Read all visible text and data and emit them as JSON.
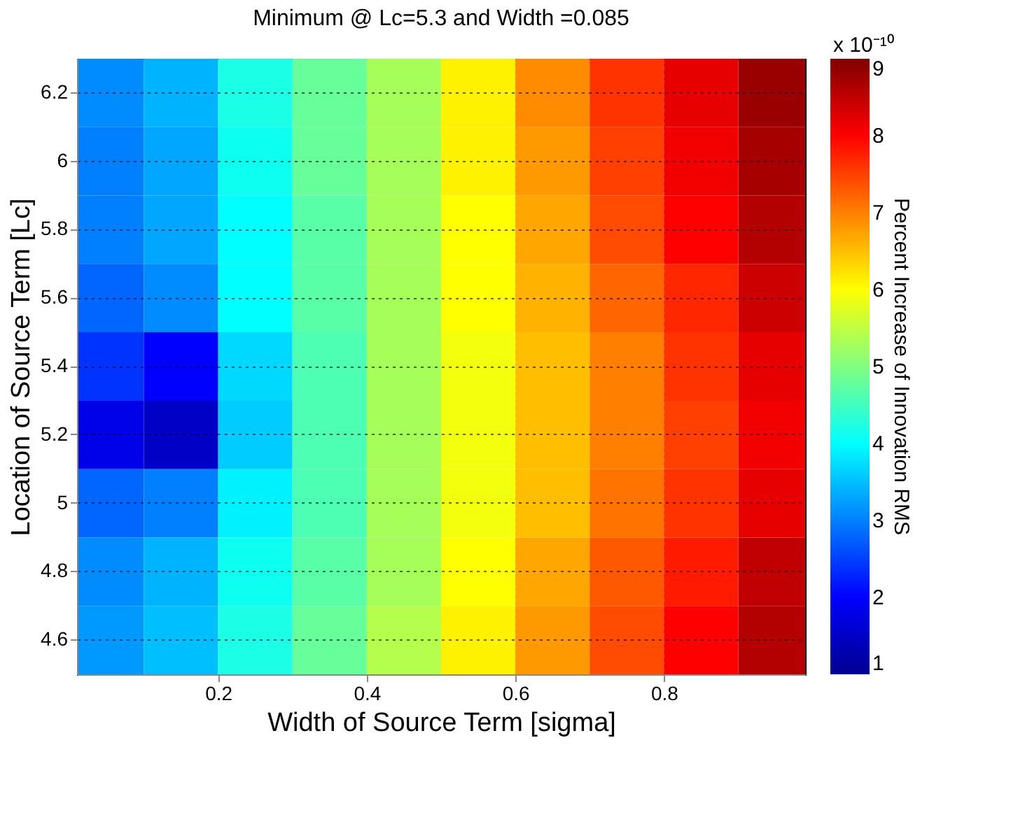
{
  "chart_data": {
    "type": "heatmap",
    "title": "Minimum @ Lc=5.3 and Width =0.085",
    "xlabel": "Width of Source Term [sigma]",
    "ylabel": "Location of Source Term [Lc]",
    "clabel": "Percent Increase of Innovation RMS",
    "annotations": [
      "x 10⁻¹⁰"
    ],
    "x": [
      0.05,
      0.15,
      0.25,
      0.35,
      0.45,
      0.55,
      0.65,
      0.75,
      0.85,
      0.95
    ],
    "y_categories": [
      "6.2",
      "6",
      "5.8",
      "5.6",
      "5.4",
      "5.2",
      "5",
      "4.8",
      "4.6"
    ],
    "cells": [
      [
        3.1,
        3.4,
        4.2,
        4.8,
        5.3,
        6.1,
        6.9,
        7.6,
        8.2,
        8.8
      ],
      [
        3.0,
        3.3,
        4.1,
        4.8,
        5.3,
        6.1,
        6.8,
        7.5,
        8.1,
        8.7
      ],
      [
        3.0,
        3.3,
        4.0,
        4.7,
        5.3,
        6.0,
        6.7,
        7.4,
        8.0,
        8.6
      ],
      [
        2.8,
        3.1,
        4.0,
        4.7,
        5.3,
        6.0,
        6.6,
        7.2,
        7.7,
        8.4
      ],
      [
        2.4,
        2.0,
        3.7,
        4.6,
        5.3,
        5.9,
        6.5,
        7.0,
        7.6,
        8.2
      ],
      [
        1.8,
        1.5,
        3.6,
        4.6,
        5.3,
        5.9,
        6.5,
        7.0,
        7.5,
        8.1
      ],
      [
        2.8,
        3.0,
        3.9,
        4.6,
        5.3,
        5.9,
        6.5,
        7.1,
        7.6,
        8.2
      ],
      [
        3.1,
        3.4,
        4.1,
        4.7,
        5.3,
        6.0,
        6.7,
        7.3,
        7.8,
        8.5
      ],
      [
        3.2,
        3.5,
        4.2,
        4.8,
        5.4,
        6.1,
        6.8,
        7.4,
        8.0,
        8.6
      ]
    ],
    "xlim": [
      0.01,
      0.99
    ],
    "xticks": [
      0.2,
      0.4,
      0.6,
      0.8
    ],
    "clim": [
      1,
      9
    ],
    "cticks": [
      1,
      2,
      3,
      4,
      5,
      6,
      7,
      8,
      9
    ],
    "grid": true
  }
}
